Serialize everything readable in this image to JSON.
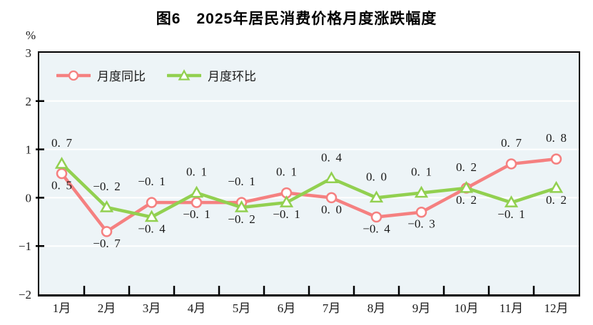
{
  "title": "图6　2025年居民消费价格月度涨跌幅度",
  "colors": {
    "yoy_line": "#f58080",
    "mom_line": "#92d050",
    "plot_background": "#edf4f7",
    "gridline": "#ffffff",
    "axis": "#000000",
    "text": "#1a1a1a"
  },
  "chart_data": {
    "type": "line",
    "title": "图6　2025年居民消费价格月度涨跌幅度",
    "xlabel": "",
    "ylabel": "%",
    "ylim": [
      -2,
      3
    ],
    "yticks": [
      3,
      2,
      1,
      0,
      -1,
      -2
    ],
    "grid": true,
    "legend_position": "top-left-inside",
    "data_labels": true,
    "categories": [
      "1月",
      "2月",
      "3月",
      "4月",
      "5月",
      "6月",
      "7月",
      "8月",
      "9月",
      "10月",
      "11月",
      "12月"
    ],
    "series": [
      {
        "name": "月度同比",
        "marker": "circle",
        "color": "#f58080",
        "values": [
          0.5,
          -0.7,
          -0.1,
          -0.1,
          -0.1,
          0.1,
          0.0,
          -0.4,
          -0.3,
          0.2,
          0.7,
          0.8
        ]
      },
      {
        "name": "月度环比",
        "marker": "triangle",
        "color": "#92d050",
        "values": [
          0.7,
          -0.2,
          -0.4,
          0.1,
          -0.2,
          -0.1,
          0.4,
          0.0,
          0.1,
          0.2,
          -0.1,
          0.2
        ]
      }
    ]
  }
}
